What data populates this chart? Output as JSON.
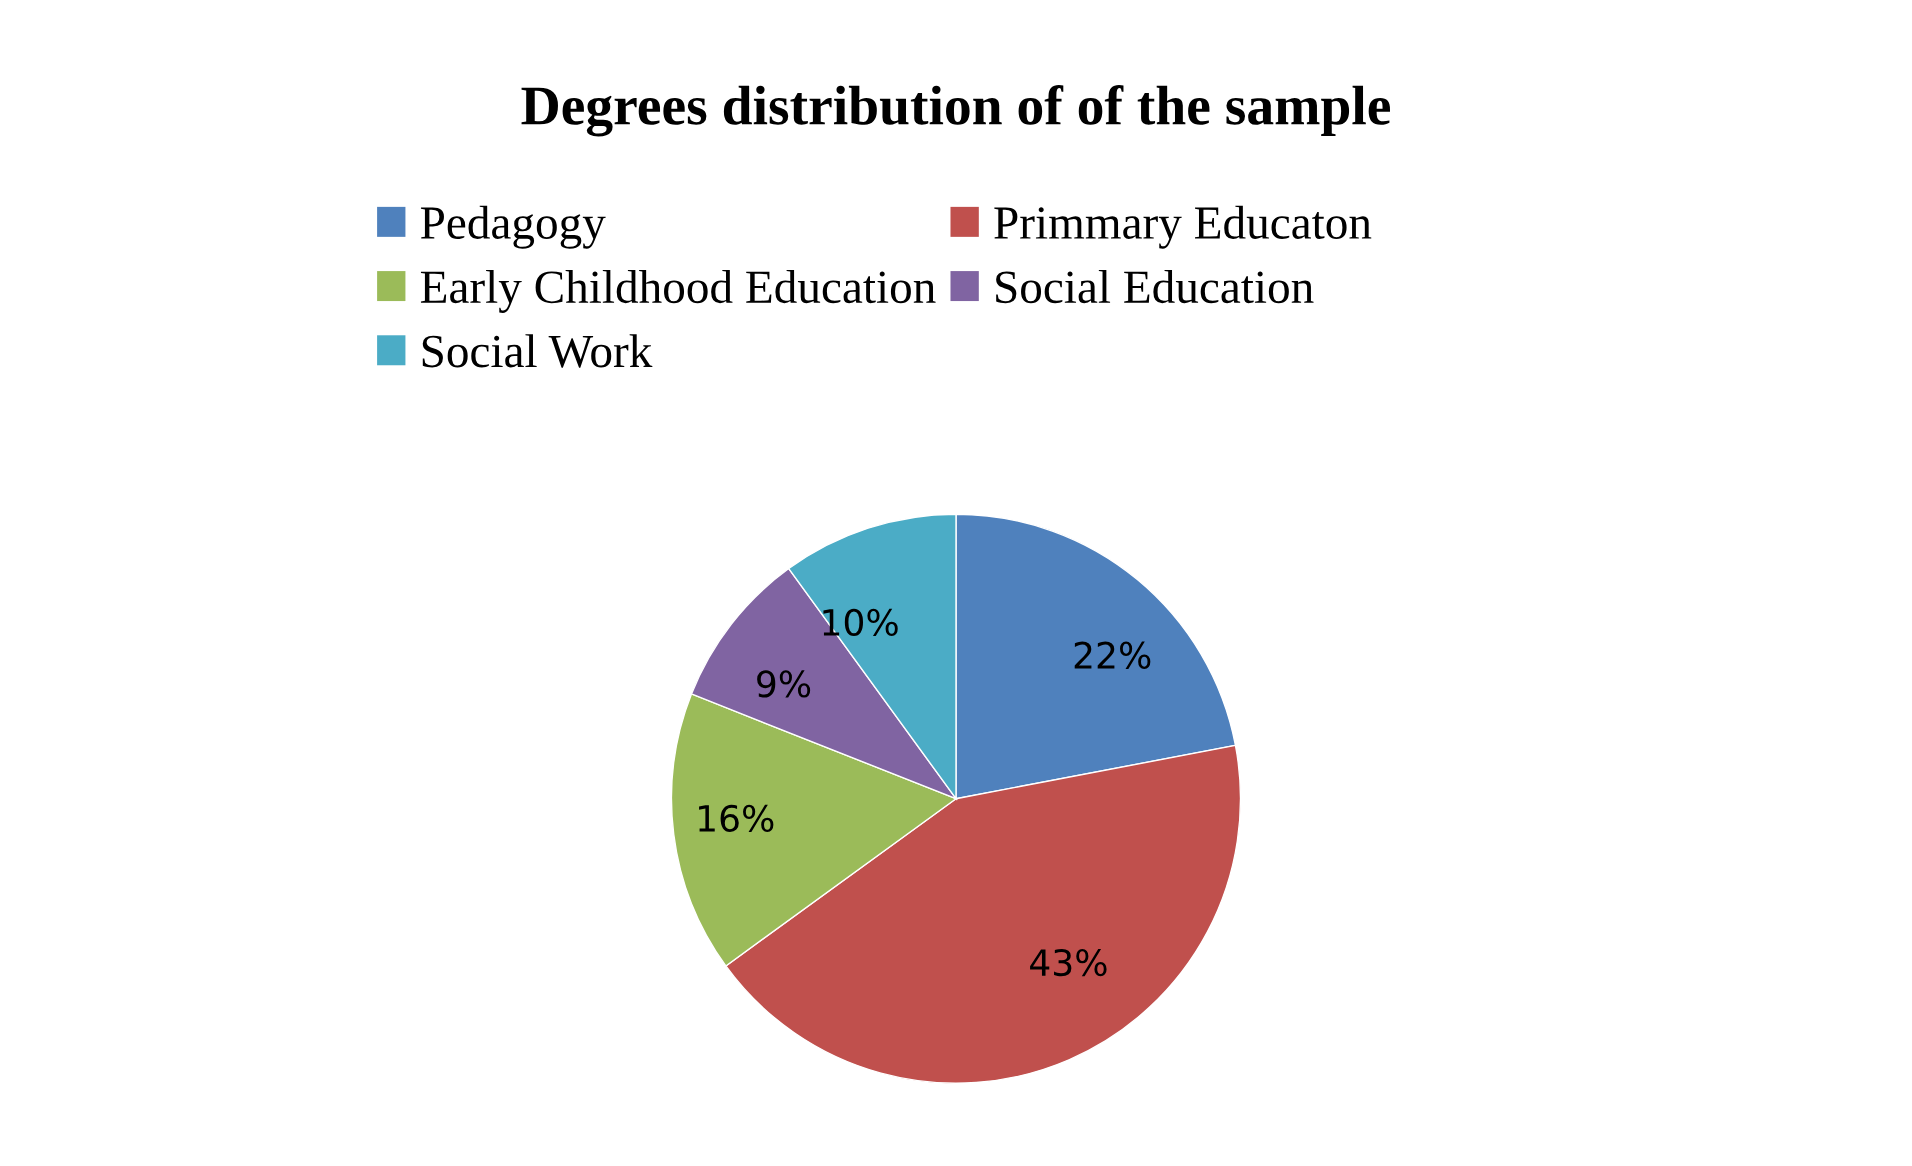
{
  "chart_data": {
    "type": "pie",
    "title": "Degrees distribution of of the sample",
    "categories": [
      "Pedagogy",
      "Primmary Educaton",
      "Early Childhood Education",
      "Social Education",
      "Social Work"
    ],
    "values": [
      22,
      43,
      16,
      9,
      10
    ],
    "colors": [
      "#4f81bd",
      "#c0504d",
      "#9bbb59",
      "#8064a2",
      "#4bacc6"
    ],
    "value_labels": [
      "22%",
      "43%",
      "16%",
      "9%",
      "10%"
    ],
    "legend": "top"
  }
}
